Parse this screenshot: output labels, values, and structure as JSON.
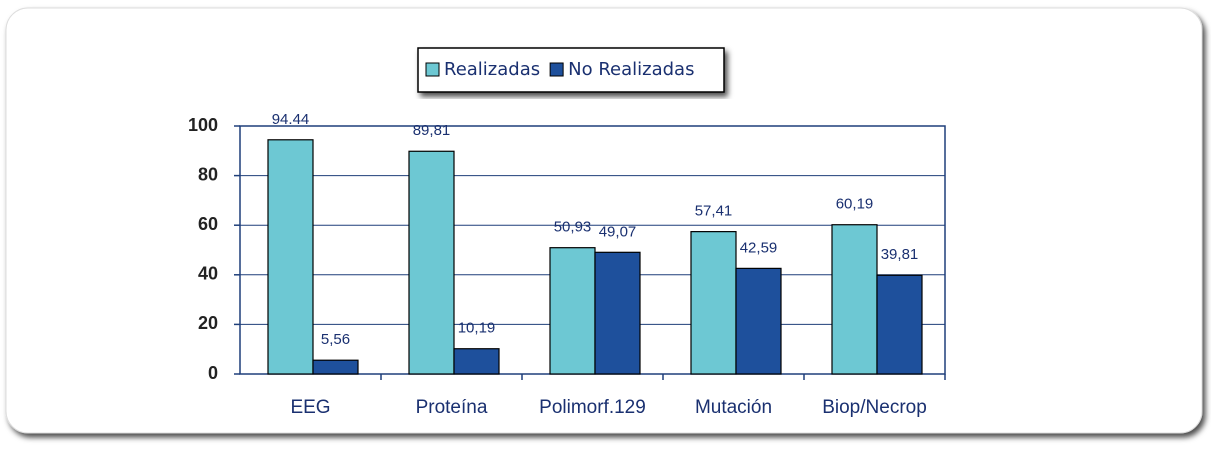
{
  "chart_data": {
    "type": "bar",
    "categories": [
      "EEG",
      "Proteína",
      "Polimorf.129",
      "Mutación",
      "Biop/Necrop"
    ],
    "series": [
      {
        "name": "Realizadas",
        "color": "#6dc8d3",
        "values": [
          94.44,
          89.81,
          50.93,
          57.41,
          60.19
        ],
        "value_labels": [
          "94.44",
          "89,81",
          "50,93",
          "57,41",
          "60,19"
        ]
      },
      {
        "name": "No Realizadas",
        "color": "#1e509c",
        "values": [
          5.56,
          10.19,
          49.07,
          42.59,
          39.81
        ],
        "value_labels": [
          "5,56",
          "10,19",
          "49,07",
          "42,59",
          "39,81"
        ]
      }
    ],
    "ylim": [
      0,
      100
    ],
    "yticks": [
      0,
      20,
      40,
      60,
      80,
      100
    ],
    "grid": true,
    "legend": "top"
  }
}
